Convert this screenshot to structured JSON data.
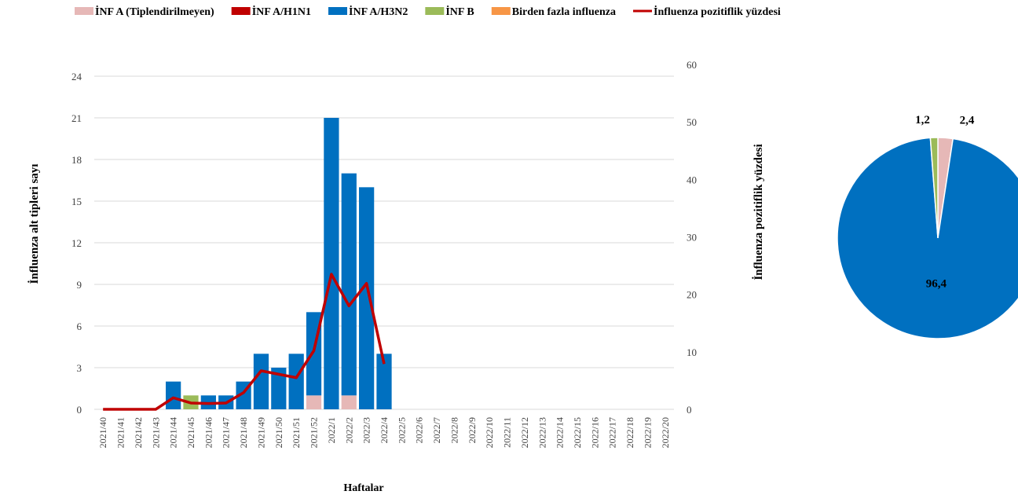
{
  "chart_data": [
    {
      "type": "bar",
      "stacked": true,
      "categories": [
        "2021/40",
        "2021/41",
        "2021/42",
        "2021/43",
        "2021/44",
        "2021/45",
        "2021/46",
        "2021/47",
        "2021/48",
        "2021/49",
        "2021/50",
        "2021/51",
        "2021/52",
        "2022/1",
        "2022/2",
        "2022/3",
        "2022/4",
        "2022/5",
        "2022/6",
        "2022/7",
        "2022/8",
        "2022/9",
        "2022/10",
        "2022/11",
        "2022/12",
        "2022/13",
        "2022/14",
        "2022/15",
        "2022/16",
        "2022/17",
        "2022/18",
        "2022/19",
        "2022/20"
      ],
      "series": [
        {
          "name": "İNF A (Tiplendirilmeyen)",
          "color": "#e6b8b7",
          "values": [
            0,
            0,
            0,
            0,
            0,
            0,
            0,
            0,
            0,
            0,
            0,
            0,
            1,
            0,
            1,
            0,
            0,
            0,
            0,
            0,
            0,
            0,
            0,
            0,
            0,
            0,
            0,
            0,
            0,
            0,
            0,
            0,
            0
          ]
        },
        {
          "name": "İNF A/H1N1",
          "color": "#c00000",
          "values": [
            0,
            0,
            0,
            0,
            0,
            0,
            0,
            0,
            0,
            0,
            0,
            0,
            0,
            0,
            0,
            0,
            0,
            0,
            0,
            0,
            0,
            0,
            0,
            0,
            0,
            0,
            0,
            0,
            0,
            0,
            0,
            0,
            0
          ]
        },
        {
          "name": "İNF A/H3N2",
          "color": "#0070c0",
          "values": [
            0,
            0,
            0,
            0,
            2,
            0,
            1,
            1,
            2,
            4,
            3,
            4,
            6,
            21,
            16,
            16,
            4,
            0,
            0,
            0,
            0,
            0,
            0,
            0,
            0,
            0,
            0,
            0,
            0,
            0,
            0,
            0,
            0
          ]
        },
        {
          "name": "İNF B",
          "color": "#9bbb59",
          "values": [
            0,
            0,
            0,
            0,
            0,
            1,
            0,
            0,
            0,
            0,
            0,
            0,
            0,
            0,
            0,
            0,
            0,
            0,
            0,
            0,
            0,
            0,
            0,
            0,
            0,
            0,
            0,
            0,
            0,
            0,
            0,
            0,
            0
          ]
        },
        {
          "name": "Birden fazla influenza",
          "color": "#f79646",
          "values": [
            0,
            0,
            0,
            0,
            0,
            0,
            0,
            0,
            0,
            0,
            0,
            0,
            0,
            0,
            0,
            0,
            0,
            0,
            0,
            0,
            0,
            0,
            0,
            0,
            0,
            0,
            0,
            0,
            0,
            0,
            0,
            0,
            0
          ]
        },
        {
          "name": "İnfluenza pozitiflik yüzdesi",
          "color": "#c00000",
          "type": "line",
          "axis": "y2",
          "values": [
            0,
            0,
            0,
            0,
            2.0,
            1.1,
            1.0,
            1.1,
            2.9,
            6.7,
            6.1,
            5.5,
            10.2,
            23.5,
            18.0,
            21.9,
            7.9,
            null,
            null,
            null,
            null,
            null,
            null,
            null,
            null,
            null,
            null,
            null,
            null,
            null,
            null,
            null,
            null
          ]
        }
      ],
      "ylim": [
        0,
        24
      ],
      "yticks": [
        0,
        3,
        6,
        9,
        12,
        15,
        18,
        21,
        24
      ],
      "y2lim": [
        0,
        60
      ],
      "y2ticks": [
        0,
        10,
        20,
        30,
        40,
        50,
        60
      ],
      "ylabel": "İnfluenza alt tipleri sayı",
      "y2label": "İnfluenza pozitiflik yüzdesi",
      "xlabel": "Haftalar",
      "grid": true,
      "legend": "top"
    },
    {
      "type": "pie",
      "values": [
        2.4,
        96.4,
        1.2
      ],
      "value_labels": [
        "2,4",
        "96,4",
        "1,2"
      ],
      "colors": [
        "#e6b8b7",
        "#0070c0",
        "#9bbb59"
      ]
    }
  ]
}
